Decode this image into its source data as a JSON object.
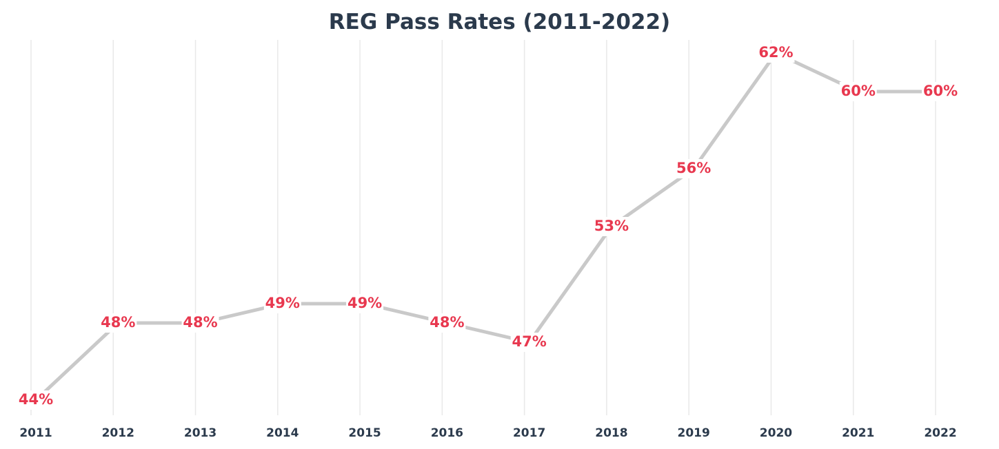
{
  "chart_data": {
    "type": "line",
    "title": "REG Pass Rates (2011-2022)",
    "xlabel": "",
    "ylabel": "",
    "categories": [
      "2011",
      "2012",
      "2013",
      "2014",
      "2015",
      "2016",
      "2017",
      "2018",
      "2019",
      "2020",
      "2021",
      "2022"
    ],
    "series": [
      {
        "values": [
          44,
          48,
          48,
          49,
          49,
          48,
          47,
          53,
          56,
          62,
          60,
          60
        ],
        "labels": [
          "44%",
          "48%",
          "48%",
          "49%",
          "49%",
          "48%",
          "47%",
          "53%",
          "56%",
          "62%",
          "60%",
          "60%"
        ]
      }
    ],
    "ylim": [
      44,
      62
    ],
    "grid": "vertical",
    "y_axis_visible": false,
    "colors": {
      "line": "#c9c9c9",
      "label": "#e8384f",
      "grid": "#e9e9e9",
      "text": "#2b3a4c"
    }
  }
}
